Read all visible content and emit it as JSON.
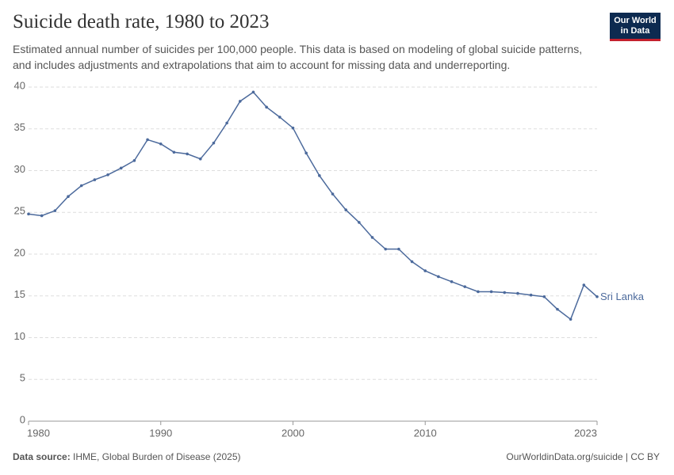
{
  "logo": [
    "Our World",
    "in Data"
  ],
  "chart_data": {
    "type": "line",
    "title": "Suicide death rate, 1980 to 2023",
    "subtitle": "Estimated annual number of suicides per 100,000 people. This data is based on modeling of global suicide patterns, and includes adjustments and extrapolations that aim to account for missing data and underreporting.",
    "x": [
      1980,
      1981,
      1982,
      1983,
      1984,
      1985,
      1986,
      1987,
      1988,
      1989,
      1990,
      1991,
      1992,
      1993,
      1994,
      1995,
      1996,
      1997,
      1998,
      1999,
      2000,
      2001,
      2002,
      2003,
      2004,
      2005,
      2006,
      2007,
      2008,
      2009,
      2010,
      2011,
      2012,
      2013,
      2014,
      2015,
      2016,
      2017,
      2018,
      2019,
      2020,
      2021,
      2022,
      2023
    ],
    "series": [
      {
        "name": "Sri Lanka",
        "color": "#4c6a9c",
        "values": [
          24.8,
          24.6,
          25.2,
          26.9,
          28.2,
          28.9,
          29.5,
          30.3,
          31.2,
          33.7,
          33.2,
          32.2,
          32.0,
          31.4,
          33.3,
          35.7,
          38.3,
          39.4,
          37.6,
          36.4,
          35.1,
          32.1,
          29.4,
          27.2,
          25.3,
          23.8,
          22.0,
          20.6,
          20.6,
          19.1,
          18.0,
          17.3,
          16.7,
          16.1,
          15.5,
          15.5,
          15.4,
          15.3,
          15.1,
          14.9,
          13.4,
          12.2,
          16.3,
          14.9
        ]
      }
    ],
    "xlim": [
      1980,
      2023
    ],
    "xticks": [
      1980,
      1990,
      2000,
      2010,
      2023
    ],
    "ylim": [
      0,
      40
    ],
    "yticks": [
      0,
      5,
      10,
      15,
      20,
      25,
      30,
      35,
      40
    ],
    "grid": true,
    "source_label": "Data source:",
    "source": "IHME, Global Burden of Disease (2025)",
    "credit": "OurWorldinData.org/suicide | CC BY"
  }
}
